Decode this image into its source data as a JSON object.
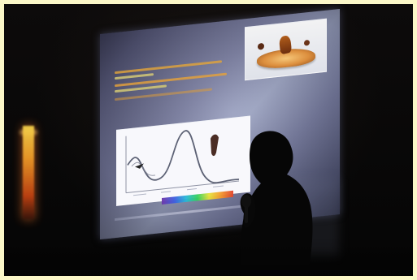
{
  "slide": {
    "title": ""
  }
}
